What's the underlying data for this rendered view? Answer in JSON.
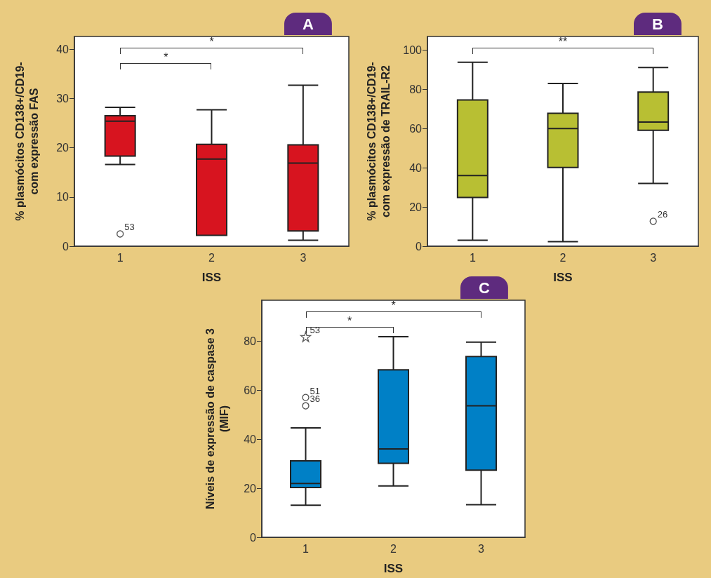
{
  "chart_data": [
    {
      "type": "box",
      "title": "A",
      "xlabel": "ISS",
      "ylabel": "% plasmócitos CD138+/CD19-\ncom expressão FAS",
      "categories": [
        "1",
        "2",
        "3"
      ],
      "ylim": [
        0,
        42.6
      ],
      "yticks": [
        0,
        10,
        20,
        30,
        40
      ],
      "grid": false,
      "series": [
        {
          "color": "#d7141f",
          "boxes": [
            {
              "low": 16.6,
              "q1": 18.3,
              "median": 25.4,
              "q3": 26.5,
              "high": 28.2
            },
            {
              "low": 2.2,
              "q1": 2.2,
              "median": 17.7,
              "q3": 20.7,
              "high": 27.7
            },
            {
              "low": 1.2,
              "q1": 3.1,
              "median": 16.9,
              "q3": 20.6,
              "high": 32.7
            }
          ]
        },
        {
          "type": "scatter",
          "marker": "circle",
          "color": "#222222",
          "x": [
            "1"
          ],
          "values": [
            2.5
          ]
        }
      ],
      "annotations": [
        "*",
        "*",
        {
          "text": "53",
          "x": "1",
          "y": 2.5
        }
      ]
    },
    {
      "type": "box",
      "title": "B",
      "xlabel": "ISS",
      "ylabel": "% plasmócitos CD138+/CD19-\ncom expressão de TRAIL-R2",
      "categories": [
        "1",
        "2",
        "3"
      ],
      "ylim": [
        0,
        106.8
      ],
      "yticks": [
        0,
        20,
        40,
        60,
        80,
        100
      ],
      "grid": false,
      "series": [
        {
          "color": "#b8bf33",
          "boxes": [
            {
              "low": 3,
              "q1": 24.8,
              "median": 36,
              "q3": 74.5,
              "high": 93.7
            },
            {
              "low": 2.3,
              "q1": 40.1,
              "median": 59.9,
              "q3": 67.7,
              "high": 82.9
            },
            {
              "low": 32,
              "q1": 59,
              "median": 63.2,
              "q3": 78.5,
              "high": 91
            }
          ]
        },
        {
          "type": "scatter",
          "marker": "circle",
          "color": "#222222",
          "x": [
            "3"
          ],
          "values": [
            12.7
          ]
        }
      ],
      "annotations": [
        "**",
        {
          "text": "26",
          "x": "3",
          "y": 12.7
        }
      ]
    },
    {
      "type": "box",
      "title": "C",
      "xlabel": "ISS",
      "ylabel": "Níveis de expressão de caspase 3\n(MIF)",
      "categories": [
        "1",
        "2",
        "3"
      ],
      "ylim": [
        0,
        96.8
      ],
      "yticks": [
        0,
        20,
        40,
        60,
        80
      ],
      "grid": false,
      "series": [
        {
          "color": "#0080c6",
          "boxes": [
            {
              "low": 13.1,
              "q1": 20.3,
              "median": 22,
              "q3": 31.2,
              "high": 44.7
            },
            {
              "low": 21,
              "q1": 30.2,
              "median": 36.1,
              "q3": 68.4,
              "high": 81.9
            },
            {
              "low": 13.3,
              "q1": 27.4,
              "median": 53.7,
              "q3": 73.8,
              "high": 79.7
            }
          ]
        },
        {
          "type": "scatter",
          "marker": "star",
          "color": "#333333",
          "x": [
            "1"
          ],
          "values": [
            81.9
          ]
        },
        {
          "type": "scatter",
          "marker": "circle",
          "color": "#222222",
          "x": [
            "1",
            "1"
          ],
          "values": [
            57.1,
            53.7
          ]
        }
      ],
      "annotations": [
        "*",
        "*",
        {
          "text": "53",
          "x": "1",
          "y": 81.9
        },
        {
          "text": "51",
          "x": "1",
          "y": 57.1
        },
        {
          "text": "36",
          "x": "1",
          "y": 53.7
        }
      ]
    }
  ]
}
